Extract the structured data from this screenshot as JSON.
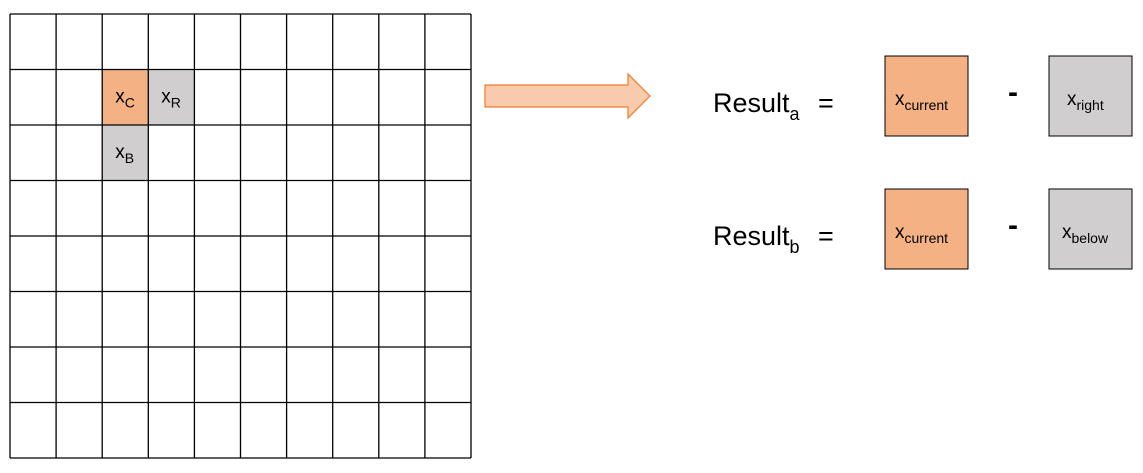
{
  "colors": {
    "current": "#F4B183",
    "neighbor": "#D0CECE",
    "grid_line": "#000000",
    "arrow_fill": "#F8CBAD",
    "arrow_stroke": "#ED7D31"
  },
  "grid": {
    "rows": 8,
    "cols": 10,
    "highlighted": [
      {
        "row": 1,
        "col": 2,
        "kind": "current",
        "base": "x",
        "sub": "C"
      },
      {
        "row": 1,
        "col": 3,
        "kind": "neighbor",
        "base": "x",
        "sub": "R"
      },
      {
        "row": 2,
        "col": 2,
        "kind": "neighbor",
        "base": "x",
        "sub": "B"
      }
    ]
  },
  "arrow": {
    "icon": "right-arrow-icon"
  },
  "equations": [
    {
      "result_base": "Result",
      "result_sub": "a",
      "equals": "=",
      "operand1": {
        "base": "x",
        "sub": "current",
        "kind": "current"
      },
      "operator": "-",
      "operand2": {
        "base": "x",
        "sub": "right",
        "kind": "neighbor"
      }
    },
    {
      "result_base": "Result",
      "result_sub": "b",
      "equals": "=",
      "operand1": {
        "base": "x",
        "sub": "current",
        "kind": "current"
      },
      "operator": "-",
      "operand2": {
        "base": "x",
        "sub": "below",
        "kind": "neighbor"
      }
    }
  ]
}
